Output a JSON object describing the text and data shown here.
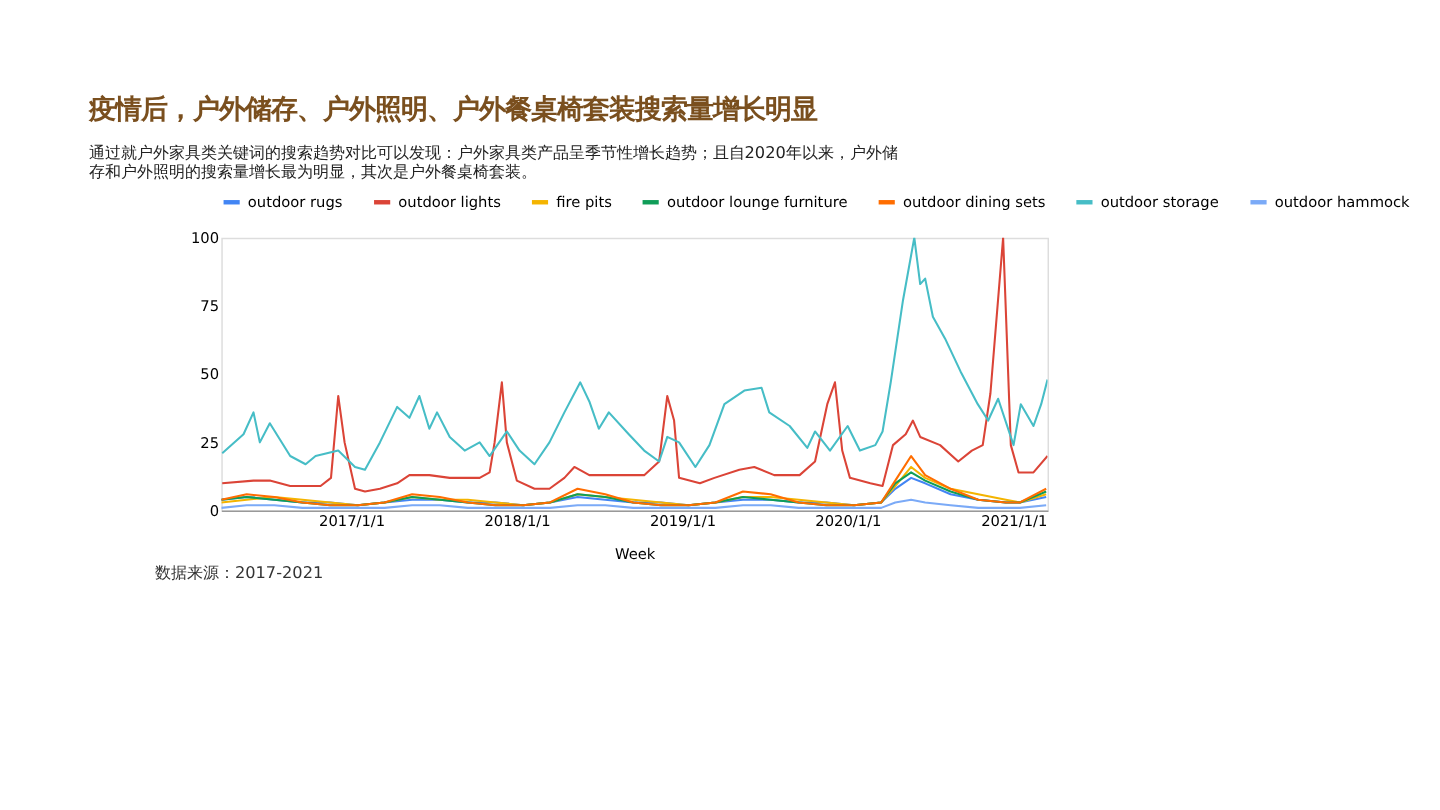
{
  "chart_data": {
    "type": "line",
    "title": "疫情后，户外储存、户外照明、户外餐桌椅套装搜索量增长明显",
    "subtitle": "通过就户外家具类关键词的搜索趋势对比可以发现：户外家具类产品呈季节性增长趋势；且自2020年以来，户外储存和户外照明的搜索量增长最为明显，其次是户外餐桌椅套装。",
    "xlabel": "Week",
    "annotations": [
      "数据来源：2017-2021"
    ],
    "xlim": [
      "2016-03-20",
      "2021-03-17"
    ],
    "xticks": [
      {
        "value": "2017-01-01",
        "label": "2017/1/1"
      },
      {
        "value": "2018-01-01",
        "label": "2018/1/1"
      },
      {
        "value": "2019-01-01",
        "label": "2019/1/1"
      },
      {
        "value": "2020-01-01",
        "label": "2020/1/1"
      },
      {
        "value": "2021-01-01",
        "label": "2021/1/1"
      }
    ],
    "ylim": [
      0,
      100
    ],
    "yticks": [
      0,
      25,
      50,
      75,
      100
    ],
    "grid": false,
    "legend": "top",
    "line_style": "solid",
    "marker": "none",
    "series": [
      {
        "name": "outdoor rugs",
        "color": "#4285f4",
        "x": [
          "2016-03-20",
          "2016-05-15",
          "2016-07-15",
          "2016-09-15",
          "2016-11-15",
          "2017-01-15",
          "2017-03-15",
          "2017-05-15",
          "2017-07-15",
          "2017-09-15",
          "2017-11-15",
          "2018-01-15",
          "2018-03-15",
          "2018-05-15",
          "2018-07-15",
          "2018-09-15",
          "2018-11-15",
          "2019-01-15",
          "2019-03-15",
          "2019-05-15",
          "2019-07-15",
          "2019-09-15",
          "2019-11-15",
          "2020-01-15",
          "2020-03-15",
          "2020-04-15",
          "2020-05-20",
          "2020-06-20",
          "2020-08-15",
          "2020-10-15",
          "2020-12-15",
          "2021-01-15",
          "2021-03-14"
        ],
        "values": [
          4,
          5,
          4,
          3,
          3,
          2,
          3,
          4,
          4,
          3,
          3,
          2,
          3,
          5,
          4,
          3,
          3,
          2,
          3,
          4,
          4,
          3,
          3,
          2,
          3,
          8,
          12,
          10,
          6,
          4,
          3,
          3,
          5
        ]
      },
      {
        "name": "outdoor lights",
        "color": "#db4437",
        "x": [
          "2016-03-22",
          "2016-05-30",
          "2016-07-05",
          "2016-08-19",
          "2016-09-22",
          "2016-10-25",
          "2016-11-17",
          "2016-12-03",
          "2016-12-17",
          "2017-01-09",
          "2017-01-31",
          "2017-03-05",
          "2017-04-12",
          "2017-05-09",
          "2017-06-22",
          "2017-08-06",
          "2017-09-08",
          "2017-10-11",
          "2017-11-02",
          "2017-11-13",
          "2017-11-29",
          "2017-12-10",
          "2018-01-01",
          "2018-02-09",
          "2018-03-14",
          "2018-04-16",
          "2018-05-08",
          "2018-06-10",
          "2018-07-23",
          "2018-09-05",
          "2018-10-09",
          "2018-11-11",
          "2018-11-29",
          "2018-12-14",
          "2018-12-25",
          "2019-02-09",
          "2019-03-13",
          "2019-05-07",
          "2019-06-09",
          "2019-07-23",
          "2019-09-17",
          "2019-10-21",
          "2019-11-17",
          "2019-12-04",
          "2019-12-20",
          "2020-01-06",
          "2020-02-20",
          "2020-03-18",
          "2020-04-10",
          "2020-05-08",
          "2020-05-24",
          "2020-06-09",
          "2020-07-23",
          "2020-09-01",
          "2020-10-01",
          "2020-10-25",
          "2020-11-11",
          "2020-12-09",
          "2020-12-26",
          "2021-01-12",
          "2021-02-14",
          "2021-03-17"
        ],
        "values": [
          10,
          11,
          11,
          9,
          9,
          9,
          12,
          42,
          25,
          8,
          7,
          8,
          10,
          13,
          13,
          12,
          12,
          12,
          14,
          25,
          47,
          25,
          11,
          8,
          8,
          12,
          16,
          13,
          13,
          13,
          13,
          18,
          42,
          33,
          12,
          10,
          12,
          15,
          16,
          13,
          13,
          18,
          39,
          47,
          22,
          12,
          10,
          9,
          24,
          28,
          33,
          27,
          24,
          18,
          22,
          24,
          43,
          100,
          24,
          14,
          14,
          20
        ]
      },
      {
        "name": "fire pits",
        "color": "#f4b400",
        "x": [
          "2016-03-20",
          "2016-05-15",
          "2016-07-15",
          "2016-09-15",
          "2016-11-15",
          "2017-01-15",
          "2017-03-15",
          "2017-05-15",
          "2017-07-15",
          "2017-09-15",
          "2017-11-15",
          "2018-01-15",
          "2018-03-15",
          "2018-05-15",
          "2018-07-15",
          "2018-09-15",
          "2018-11-15",
          "2019-01-15",
          "2019-03-15",
          "2019-05-15",
          "2019-07-15",
          "2019-09-15",
          "2019-11-15",
          "2020-01-15",
          "2020-03-15",
          "2020-04-15",
          "2020-05-20",
          "2020-06-20",
          "2020-08-15",
          "2020-10-15",
          "2020-12-15",
          "2021-01-15",
          "2021-03-14"
        ],
        "values": [
          3,
          4,
          5,
          4,
          3,
          2,
          3,
          5,
          4,
          4,
          3,
          2,
          3,
          6,
          5,
          4,
          3,
          2,
          3,
          5,
          5,
          4,
          3,
          2,
          3,
          9,
          16,
          12,
          8,
          6,
          4,
          3,
          6
        ]
      },
      {
        "name": "outdoor lounge furniture",
        "color": "#0f9d58",
        "x": [
          "2016-03-20",
          "2016-05-15",
          "2016-07-15",
          "2016-09-15",
          "2016-11-15",
          "2017-01-15",
          "2017-03-15",
          "2017-05-15",
          "2017-07-15",
          "2017-09-15",
          "2017-11-15",
          "2018-01-15",
          "2018-03-15",
          "2018-05-15",
          "2018-07-15",
          "2018-09-15",
          "2018-11-15",
          "2019-01-15",
          "2019-03-15",
          "2019-05-15",
          "2019-07-15",
          "2019-09-15",
          "2019-11-15",
          "2020-01-15",
          "2020-03-15",
          "2020-04-15",
          "2020-05-20",
          "2020-06-20",
          "2020-08-15",
          "2020-10-15",
          "2020-12-15",
          "2021-01-15",
          "2021-03-14"
        ],
        "values": [
          4,
          5,
          4,
          3,
          2,
          2,
          3,
          5,
          4,
          3,
          2,
          2,
          3,
          6,
          5,
          3,
          2,
          2,
          3,
          5,
          4,
          3,
          2,
          2,
          3,
          10,
          14,
          11,
          7,
          4,
          3,
          3,
          7
        ]
      },
      {
        "name": "outdoor dining sets",
        "color": "#ff6d00",
        "x": [
          "2016-03-20",
          "2016-05-15",
          "2016-07-15",
          "2016-09-15",
          "2016-11-15",
          "2017-01-15",
          "2017-03-15",
          "2017-05-15",
          "2017-07-15",
          "2017-09-15",
          "2017-11-15",
          "2018-01-15",
          "2018-03-15",
          "2018-05-15",
          "2018-07-15",
          "2018-09-15",
          "2018-11-15",
          "2019-01-15",
          "2019-03-15",
          "2019-05-15",
          "2019-07-15",
          "2019-09-15",
          "2019-11-15",
          "2020-01-15",
          "2020-03-15",
          "2020-04-15",
          "2020-05-20",
          "2020-06-20",
          "2020-08-15",
          "2020-10-15",
          "2020-12-15",
          "2021-01-15",
          "2021-03-14"
        ],
        "values": [
          4,
          6,
          5,
          3,
          2,
          2,
          3,
          6,
          5,
          3,
          2,
          2,
          3,
          8,
          6,
          3,
          2,
          2,
          3,
          7,
          6,
          3,
          2,
          2,
          3,
          11,
          20,
          13,
          8,
          4,
          3,
          3,
          8
        ]
      },
      {
        "name": "outdoor storage",
        "color": "#46bdc6",
        "x": [
          "2016-03-22",
          "2016-05-08",
          "2016-05-30",
          "2016-06-13",
          "2016-07-05",
          "2016-08-19",
          "2016-09-22",
          "2016-10-14",
          "2016-12-03",
          "2017-01-09",
          "2017-01-31",
          "2017-03-05",
          "2017-04-12",
          "2017-05-09",
          "2017-05-31",
          "2017-06-22",
          "2017-07-09",
          "2017-08-06",
          "2017-09-08",
          "2017-10-11",
          "2017-11-02",
          "2017-12-10",
          "2018-01-07",
          "2018-02-09",
          "2018-03-14",
          "2018-04-16",
          "2018-05-21",
          "2018-06-10",
          "2018-07-01",
          "2018-07-23",
          "2018-09-05",
          "2018-10-09",
          "2018-11-11",
          "2018-11-29",
          "2018-12-25",
          "2019-01-30",
          "2019-03-02",
          "2019-04-04",
          "2019-05-18",
          "2019-06-25",
          "2019-07-12",
          "2019-08-26",
          "2019-10-04",
          "2019-10-21",
          "2019-11-23",
          "2020-01-01",
          "2020-01-28",
          "2020-03-02",
          "2020-03-18",
          "2020-04-05",
          "2020-05-02",
          "2020-05-27",
          "2020-06-09",
          "2020-06-20",
          "2020-07-07",
          "2020-08-03",
          "2020-09-06",
          "2020-10-14",
          "2020-11-06",
          "2020-11-28",
          "2021-01-01",
          "2021-01-17",
          "2021-02-14",
          "2021-03-03",
          "2021-03-17"
        ],
        "values": [
          21,
          28,
          36,
          25,
          32,
          20,
          17,
          20,
          22,
          16,
          15,
          25,
          38,
          34,
          42,
          30,
          36,
          27,
          22,
          25,
          20,
          29,
          22,
          17,
          25,
          36,
          47,
          40,
          30,
          36,
          28,
          22,
          18,
          27,
          25,
          16,
          24,
          39,
          44,
          45,
          36,
          31,
          23,
          29,
          22,
          31,
          22,
          24,
          29,
          47,
          77,
          100,
          83,
          85,
          71,
          63,
          51,
          39,
          33,
          41,
          24,
          39,
          31,
          39,
          48
        ]
      },
      {
        "name": "outdoor hammock",
        "color": "#7baaf7",
        "x": [
          "2016-03-20",
          "2016-05-15",
          "2016-07-15",
          "2016-09-15",
          "2016-11-15",
          "2017-01-15",
          "2017-03-15",
          "2017-05-15",
          "2017-07-15",
          "2017-09-15",
          "2017-11-15",
          "2018-01-15",
          "2018-03-15",
          "2018-05-15",
          "2018-07-15",
          "2018-09-15",
          "2018-11-15",
          "2019-01-15",
          "2019-03-15",
          "2019-05-15",
          "2019-07-15",
          "2019-09-15",
          "2019-11-15",
          "2020-01-15",
          "2020-03-15",
          "2020-04-15",
          "2020-05-20",
          "2020-06-20",
          "2020-08-15",
          "2020-10-15",
          "2020-12-15",
          "2021-01-15",
          "2021-03-14"
        ],
        "values": [
          1,
          2,
          2,
          1,
          1,
          1,
          1,
          2,
          2,
          1,
          1,
          1,
          1,
          2,
          2,
          1,
          1,
          1,
          1,
          2,
          2,
          1,
          1,
          1,
          1,
          3,
          4,
          3,
          2,
          1,
          1,
          1,
          2
        ]
      }
    ]
  }
}
